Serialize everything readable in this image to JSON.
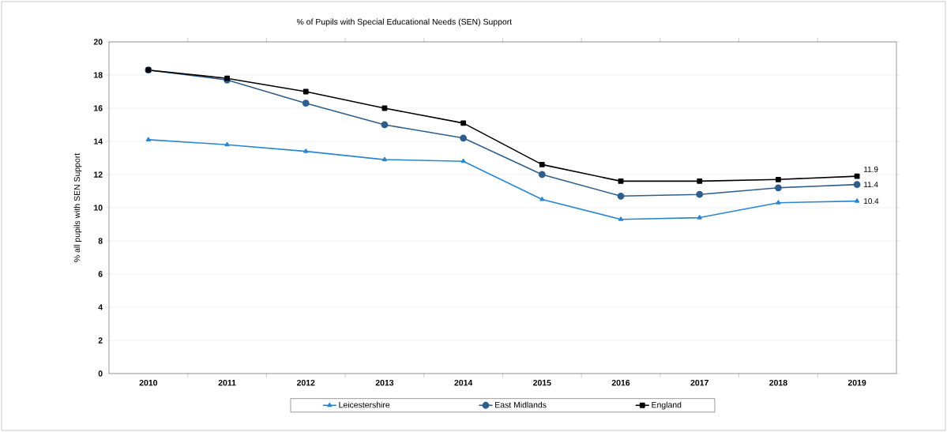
{
  "chart_data": {
    "type": "line",
    "title": "% of Pupils with Special Educational Needs (SEN) Support",
    "ylabel": "% all pupils with SEN Support",
    "categories": [
      "2010",
      "2011",
      "2012",
      "2013",
      "2014",
      "2015",
      "2016",
      "2017",
      "2018",
      "2019"
    ],
    "series": [
      {
        "name": "Leicestershire",
        "color": "#2a86d1",
        "marker": "triangle",
        "values": [
          14.1,
          13.8,
          13.4,
          12.9,
          12.8,
          10.5,
          9.3,
          9.4,
          10.3,
          10.4
        ],
        "value_labels": [
          null,
          null,
          null,
          null,
          null,
          null,
          null,
          null,
          null,
          "10.4"
        ]
      },
      {
        "name": "East Midlands",
        "color": "#2e5e8c",
        "marker": "circle",
        "values": [
          18.3,
          17.7,
          16.3,
          15.0,
          14.2,
          12.0,
          10.7,
          10.8,
          11.2,
          11.4
        ],
        "value_labels": [
          null,
          null,
          null,
          null,
          null,
          null,
          null,
          null,
          null,
          "11.4"
        ]
      },
      {
        "name": "England",
        "color": "#000000",
        "marker": "square",
        "values": [
          18.3,
          17.8,
          17.0,
          16.0,
          15.1,
          12.6,
          11.6,
          11.6,
          11.7,
          11.9
        ],
        "value_labels": [
          null,
          null,
          null,
          null,
          null,
          null,
          null,
          null,
          null,
          "11.9"
        ]
      }
    ],
    "ylim": [
      0,
      20
    ],
    "yticks": [
      0,
      2,
      4,
      6,
      8,
      10,
      12,
      14,
      16,
      18,
      20
    ],
    "grid": "y",
    "legend": "bottom"
  }
}
